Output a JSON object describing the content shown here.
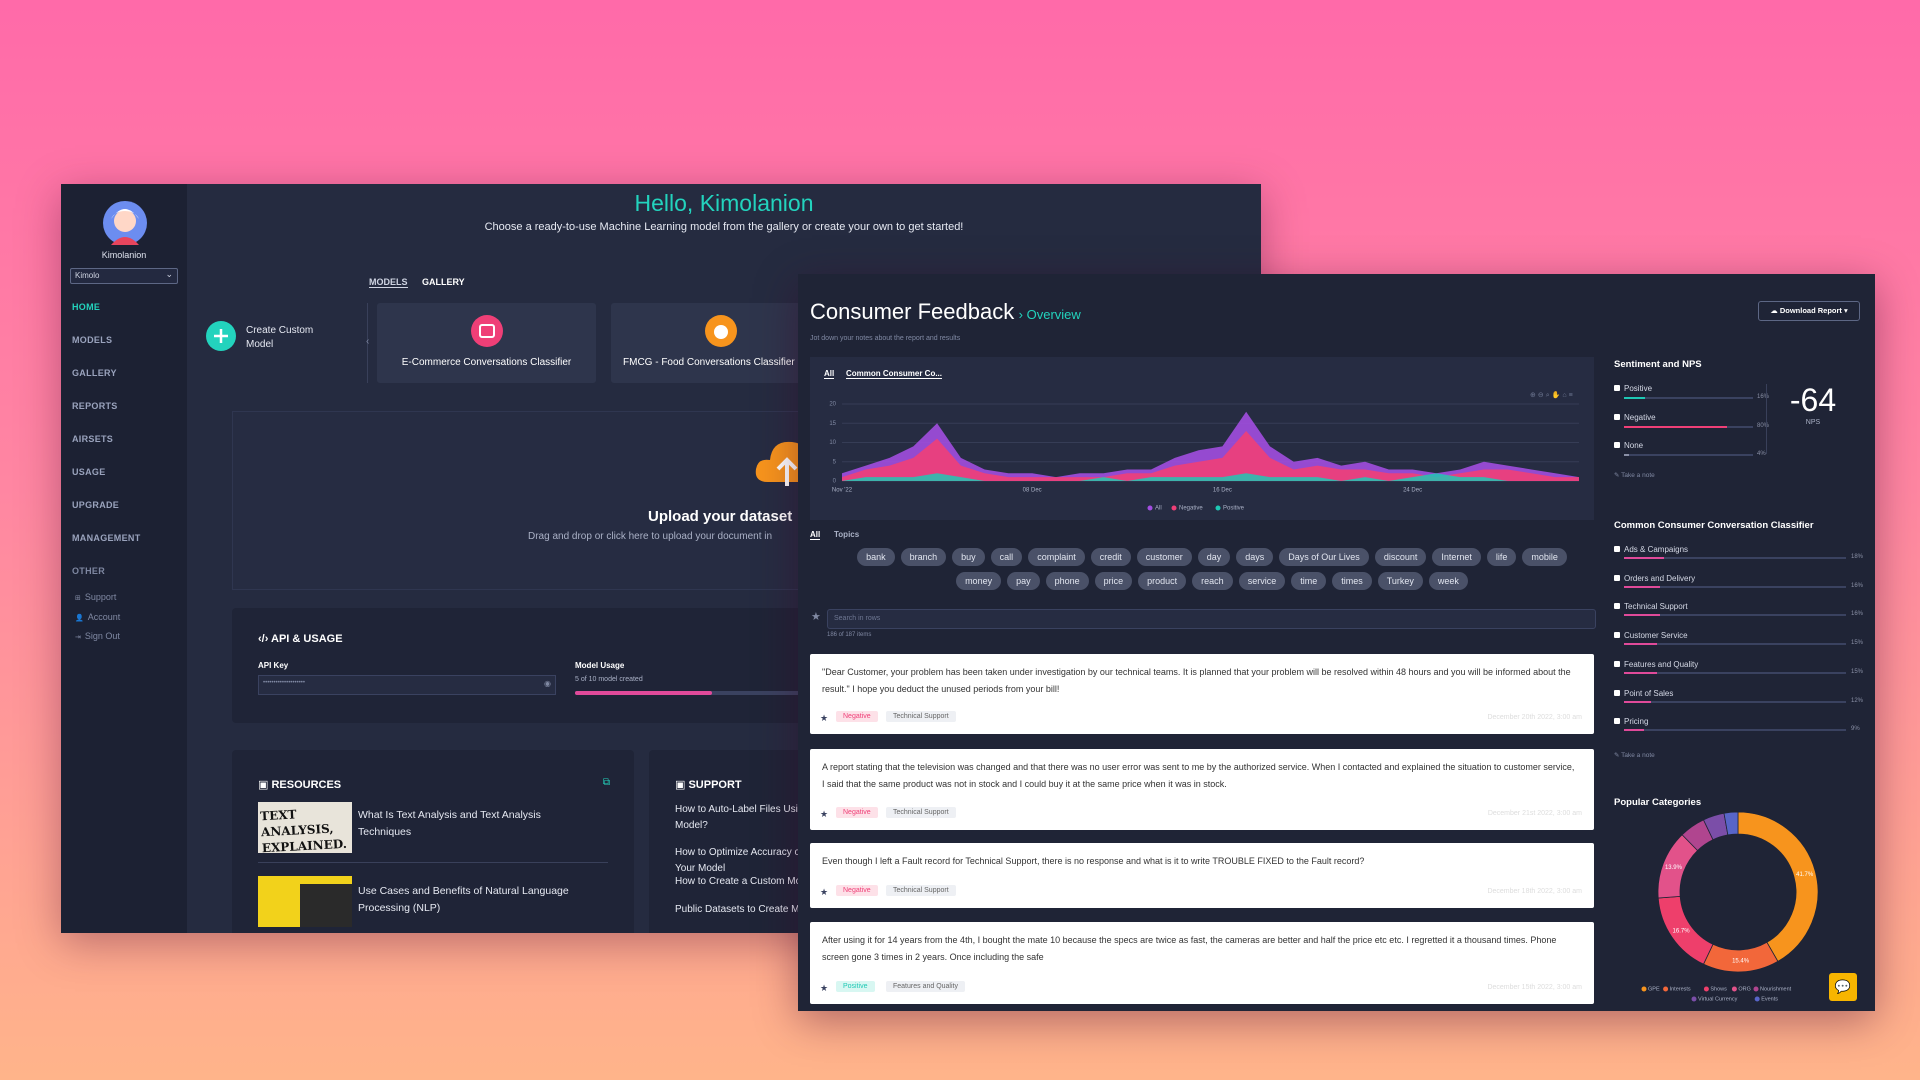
{
  "left_window": {
    "user": {
      "name": "Kimolanion",
      "workspace": "Kimolo"
    },
    "nav": [
      "HOME",
      "MODELS",
      "GALLERY",
      "REPORTS",
      "AIRSETS",
      "USAGE",
      "UPGRADE",
      "MANAGEMENT"
    ],
    "other": {
      "title": "OTHER",
      "links": [
        "Support",
        "Account",
        "Sign Out"
      ]
    },
    "header": {
      "title": "Hello, Kimolanion",
      "subtitle": "Choose a ready-to-use Machine Learning model from the gallery or create your own to get started!"
    },
    "tabs": [
      "MODELS",
      "GALLERY"
    ],
    "create_button": "Create Custom Model",
    "models": [
      "E-Commerce Conversations Classifier",
      "FMCG - Food Conversations Classifier"
    ],
    "upload": {
      "title": "Upload your dataset",
      "hint": "Drag and drop or click here to upload your document in"
    },
    "api": {
      "title": "API & USAGE",
      "key_label": "API Key",
      "key_value": "••••••••••••••••••••",
      "usage_label": "Model Usage",
      "usage_text": "5 of 10 model created"
    },
    "resources": {
      "title": "RESOURCES",
      "thumb_text": "TEXT ANALYSIS, EXPLAINED.",
      "items": [
        "What Is Text Analysis and Text Analysis Techniques",
        "Use Cases and Benefits of Natural Language Processing (NLP)"
      ]
    },
    "support": {
      "title": "SUPPORT",
      "items": [
        "How to Auto-Label Files Using a Model?",
        "How to Optimize Accuracy of Your Model",
        "How to Create a Custom Model",
        "Public Datasets to Create Models"
      ]
    }
  },
  "right_window": {
    "header": {
      "title": "Consumer Feedback",
      "crumb": "› Overview",
      "note": "Jot down your notes about the report and results",
      "download": "Download Report ▾"
    },
    "chart_tabs": [
      "All",
      "Common Consumer Co..."
    ],
    "chart": {
      "type": "area",
      "categories": [
        "Nov '22",
        null,
        null,
        null,
        null,
        null,
        null,
        null,
        "08 Dec",
        null,
        null,
        null,
        null,
        null,
        null,
        null,
        "16 Dec",
        null,
        null,
        null,
        null,
        null,
        null,
        null,
        "24 Dec",
        null,
        null,
        null,
        null,
        null,
        null,
        null
      ],
      "series": [
        {
          "name": "All",
          "color": "#a24ee0",
          "values": [
            2,
            4,
            6,
            9,
            15,
            6,
            3,
            2,
            2,
            1,
            2,
            2,
            3,
            3,
            6,
            8,
            9,
            18,
            9,
            5,
            6,
            4,
            5,
            3,
            3,
            2,
            3,
            5,
            4,
            3,
            2,
            1
          ]
        },
        {
          "name": "Negative",
          "color": "#ef3f77",
          "values": [
            1,
            3,
            4,
            6,
            11,
            4,
            2,
            1,
            1,
            1,
            1,
            1,
            2,
            2,
            4,
            5,
            6,
            13,
            6,
            3,
            4,
            3,
            3,
            2,
            2,
            1,
            2,
            3,
            3,
            2,
            1,
            1
          ]
        },
        {
          "name": "Positive",
          "color": "#1ec8b4",
          "values": [
            0,
            1,
            1,
            1,
            2,
            1,
            0,
            0,
            0,
            0,
            0,
            1,
            0,
            1,
            1,
            1,
            1,
            2,
            1,
            1,
            1,
            0,
            1,
            0,
            1,
            2,
            1,
            1,
            0,
            0,
            0,
            0
          ]
        }
      ],
      "ylim": [
        0,
        20
      ],
      "yticks": [
        0,
        5,
        10,
        15,
        20
      ],
      "grid": true
    },
    "topic_tabs": [
      "All",
      "Topics"
    ],
    "tags": [
      "bank",
      "branch",
      "buy",
      "call",
      "complaint",
      "credit",
      "customer",
      "day",
      "days",
      "Days of Our Lives",
      "discount",
      "Internet",
      "life",
      "mobile",
      "money",
      "pay",
      "phone",
      "price",
      "product",
      "reach",
      "service",
      "time",
      "times",
      "Turkey",
      "week"
    ],
    "search": {
      "placeholder": "Search in rows",
      "count": "186 of 187 items"
    },
    "reviews": [
      {
        "text": "\"Dear Customer, your problem has been taken under investigation by our technical teams. It is planned that your problem will be resolved within 48 hours and you will be informed about the result.\" I hope you deduct the unused periods from your bill!",
        "sentiment": "Negative",
        "topic": "Technical Support",
        "date": "December 20th 2022, 3:00 am"
      },
      {
        "text": "A report stating that the television was changed and that there was no user error was sent to me by the authorized service. When I contacted and explained the situation to customer service, I said that the same product was not in stock and I could buy it at the same price when it was in stock.",
        "sentiment": "Negative",
        "topic": "Technical Support",
        "date": "December 21st 2022, 3:00 am"
      },
      {
        "text": "Even though I left a Fault record for Technical Support, there is no response and what is it to write TROUBLE FIXED to the Fault record?",
        "sentiment": "Negative",
        "topic": "Technical Support",
        "date": "December 18th 2022, 3:00 am"
      },
      {
        "text": "After using it for 14 years from the 4th, I bought the mate 10 because the specs are twice as fast, the cameras are better and half the price etc etc. I regretted it a thousand times. Phone screen gone 3 times in 2 years. Once including the safe",
        "sentiment": "Positive",
        "topic": "Features and Quality",
        "date": "December 15th 2022, 3:00 am"
      }
    ],
    "sentiment": {
      "title": "Sentiment and NPS",
      "categories": [
        "Positive",
        "Negative",
        "None"
      ],
      "colors": [
        "#1ec8b4",
        "#ef3f77",
        "#8a90a6"
      ],
      "values": [
        16,
        80,
        4
      ],
      "value_labels": [
        "16%",
        "80%",
        "4%"
      ],
      "nps": -64,
      "nps_label": "NPS"
    },
    "note_action": "Take a note",
    "classifier": {
      "title": "Common Consumer Conversation Classifier",
      "categories": [
        "Ads & Campaigns",
        "Orders and Delivery",
        "Technical Support",
        "Customer Service",
        "Features and Quality",
        "Point of Sales",
        "Pricing"
      ],
      "values": [
        18,
        16,
        16,
        15,
        15,
        12,
        9
      ],
      "value_labels": [
        "18%",
        "16%",
        "16%",
        "15%",
        "15%",
        "12%",
        "9%"
      ],
      "color": "#e04a9a"
    },
    "popular": {
      "type": "donut",
      "title": "Popular Categories",
      "categories": [
        "GPE",
        "Interests",
        "Shows",
        "ORG",
        "Nourishment",
        "Virtual Currency",
        "Events"
      ],
      "values": [
        41.7,
        15.4,
        16.7,
        13.9,
        5.2,
        4.3,
        2.8
      ],
      "value_labels": [
        "41.7%",
        "15.4%",
        "16.7%",
        "13.9%",
        null,
        null,
        null
      ],
      "colors": [
        "#f7941d",
        "#f2673a",
        "#ee3f6b",
        "#e2528a",
        "#b0458f",
        "#7b4ea8",
        "#5865c8"
      ]
    }
  }
}
